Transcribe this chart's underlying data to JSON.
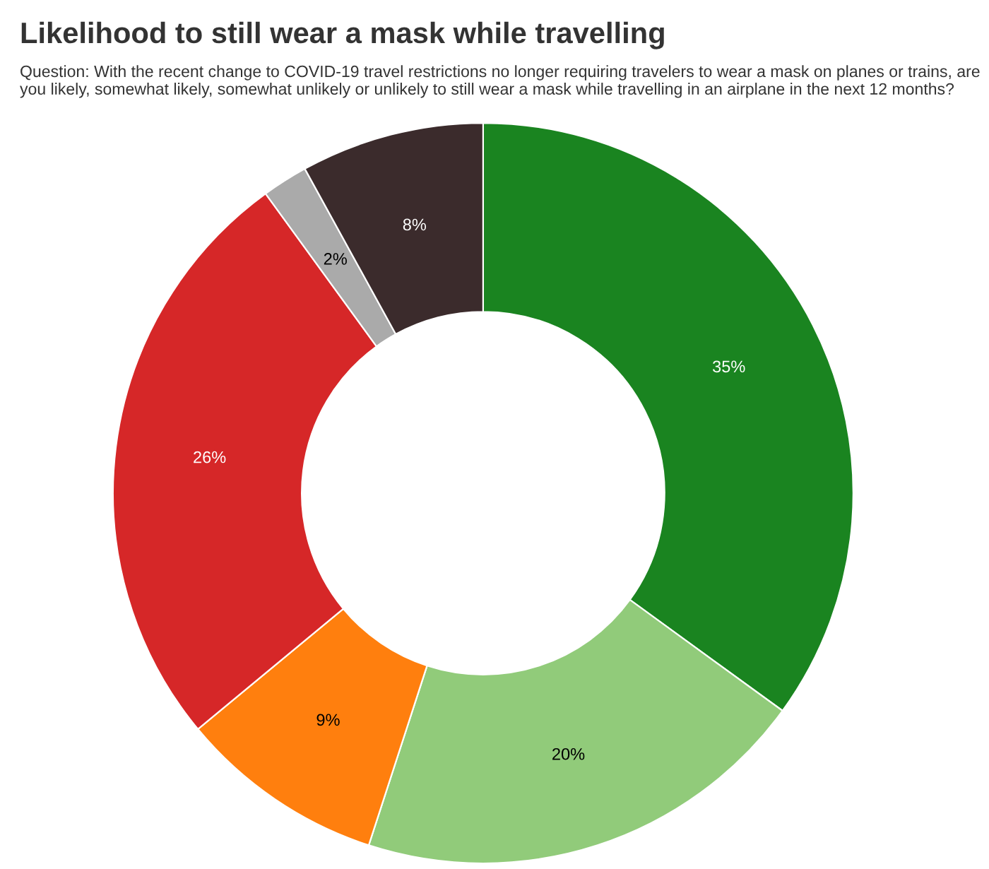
{
  "chart_data": {
    "type": "donut",
    "title": "Likelihood to still wear a mask while travelling",
    "subtitle": "Question: With the recent change to COVID-19 travel restrictions no longer requiring travelers to wear a mask on planes or trains, are you likely, somewhat likely, somewhat unlikely or unlikely to still wear a mask while travelling in an airplane in the next 12 months?",
    "categories": [
      null,
      null,
      null,
      null,
      null,
      null
    ],
    "values": [
      35,
      20,
      9,
      26,
      2,
      8
    ],
    "colors": [
      "#1a8420",
      "#91cb7a",
      "#ff7f0e",
      "#d62728",
      "#aaaaaa",
      "#3b2b2c"
    ],
    "value_labels": [
      "35%",
      "20%",
      "9%",
      "26%",
      "2%",
      "8%"
    ],
    "legend": false
  }
}
